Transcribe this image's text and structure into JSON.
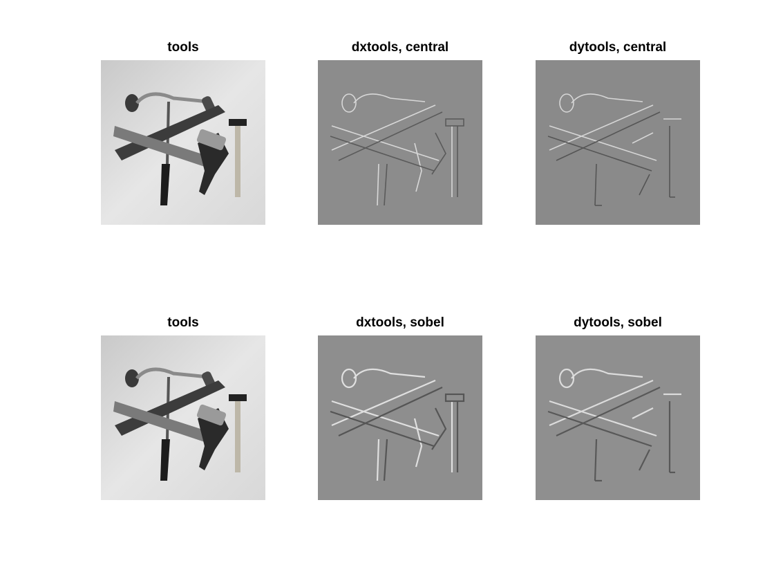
{
  "figure": {
    "panels": [
      {
        "title": "tools",
        "kind": "original"
      },
      {
        "title": "dxtools, central",
        "kind": "dx"
      },
      {
        "title": "dytools, central",
        "kind": "dy"
      },
      {
        "title": "tools",
        "kind": "original"
      },
      {
        "title": "dxtools, sobel",
        "kind": "dx"
      },
      {
        "title": "dytools, sobel",
        "kind": "dy"
      }
    ]
  },
  "colors": {
    "figure_background": "#ffffff",
    "original_background": "#dedede",
    "gradient_background": "#8c8c8c"
  }
}
